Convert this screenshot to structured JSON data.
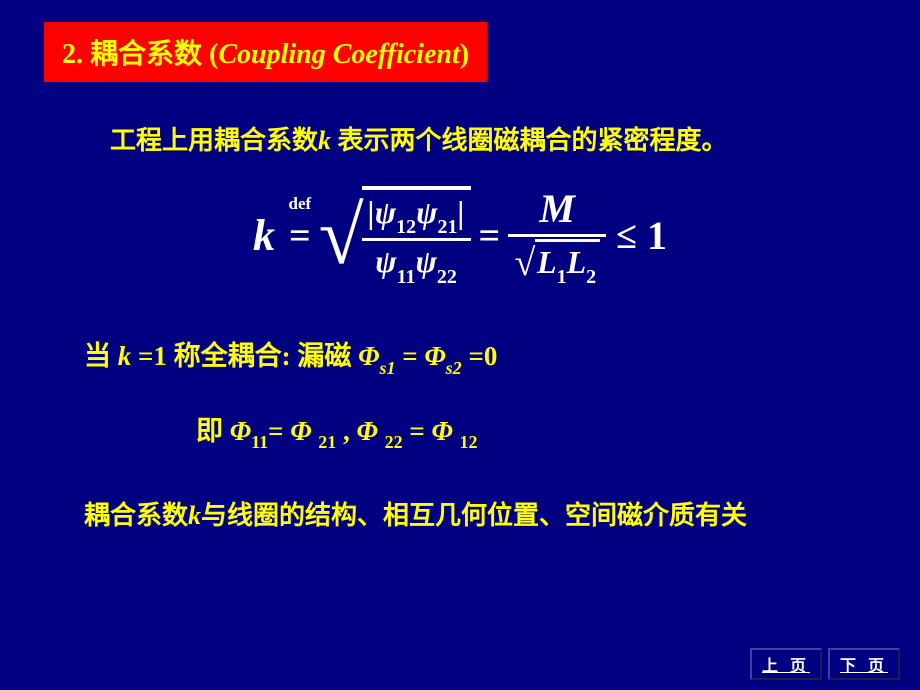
{
  "title": {
    "number": "2.",
    "cn": "耦合系数",
    "en": "Coupling Coefficient"
  },
  "intro": {
    "prefix": "工程上用耦合系数",
    "kvar": "k",
    "suffix": " 表示两个线圈磁耦合的紧密程度。"
  },
  "equation": {
    "k": "k",
    "def": "def",
    "psi12": "12",
    "psi21": "21",
    "psi11": "11",
    "psi22": "22",
    "M": "M",
    "L1": "1",
    "L2": "2",
    "one": "1",
    "psi_symbol": "ψ",
    "L_symbol": "L"
  },
  "when": {
    "prefix": "当 ",
    "k": "k",
    "eq1": " =1 ",
    "label": "称全耦合:",
    "leak": "  漏磁 ",
    "phi": "Φ",
    "s1": "s1",
    "mid": " = ",
    "s2": "s2",
    "end": " =0"
  },
  "ie": {
    "label": "即 ",
    "phi": "Φ",
    "i11": "11",
    "eq": "= ",
    "i21": "21",
    "comma": " ,   ",
    "i22": "22",
    "eq2": " = ",
    "i12": "12"
  },
  "conclusion": {
    "prefix": "耦合系数",
    "k": "k",
    "suffix": "与线圈的结构、相互几何位置、空间磁介质有关"
  },
  "nav": {
    "prev": "上 页",
    "next": "下 页"
  },
  "colors": {
    "background": "#000080",
    "title_bg": "#ff0000",
    "text_yellow": "#ffff00",
    "equation_white": "#ffffff"
  }
}
